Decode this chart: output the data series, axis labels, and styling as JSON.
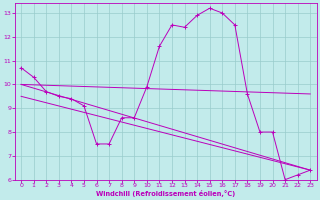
{
  "xlabel": "Windchill (Refroidissement éolien,°C)",
  "xlim": [
    -0.5,
    23.5
  ],
  "ylim": [
    6,
    13.4
  ],
  "xticks": [
    0,
    1,
    2,
    3,
    4,
    5,
    6,
    7,
    8,
    9,
    10,
    11,
    12,
    13,
    14,
    15,
    16,
    17,
    18,
    19,
    20,
    21,
    22,
    23
  ],
  "yticks": [
    6,
    7,
    8,
    9,
    10,
    11,
    12,
    13
  ],
  "bg_color": "#c2ebeb",
  "line_color": "#bb00bb",
  "grid_color": "#99cccc",
  "line1_x": [
    0,
    1,
    2,
    3,
    4,
    5,
    6,
    7,
    8,
    9,
    10,
    11,
    12,
    13,
    14,
    15,
    16,
    17,
    18,
    19,
    20,
    21,
    22,
    23
  ],
  "line1_y": [
    10.7,
    10.3,
    9.7,
    9.5,
    9.4,
    9.1,
    7.5,
    7.5,
    8.6,
    8.6,
    9.9,
    11.6,
    12.5,
    12.4,
    12.9,
    13.2,
    13.0,
    12.5,
    9.6,
    8.0,
    8.0,
    6.0,
    6.2,
    6.4
  ],
  "line2_x": [
    0,
    23
  ],
  "line2_y": [
    10.0,
    9.6
  ],
  "line3_x": [
    0,
    23
  ],
  "line3_y": [
    10.0,
    6.4
  ],
  "line4_x": [
    0,
    23
  ],
  "line4_y": [
    9.5,
    6.4
  ]
}
